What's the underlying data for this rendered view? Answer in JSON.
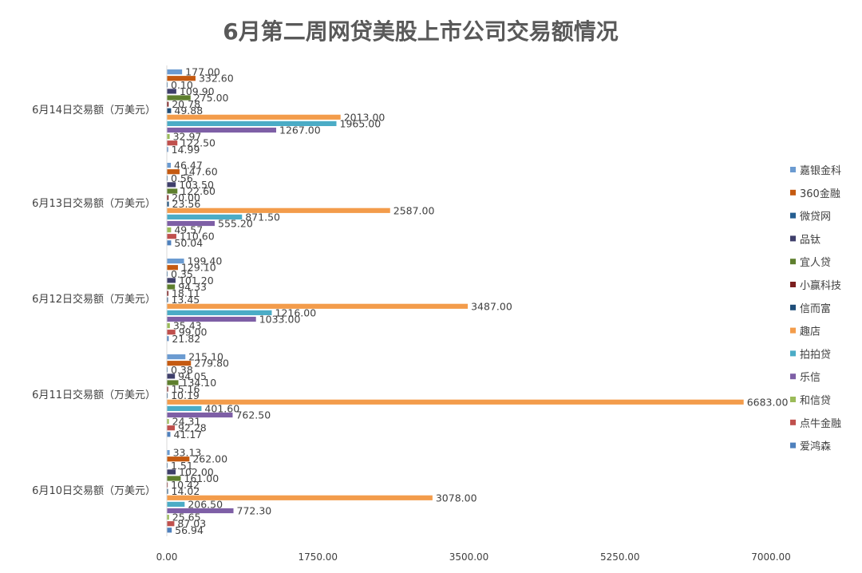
{
  "chart_data": {
    "type": "bar",
    "orientation": "horizontal",
    "title": "6月第二周网贷美股上市公司交易额情况",
    "xlabel": "",
    "ylabel": "",
    "xlim": [
      0,
      7000
    ],
    "x_ticks": [
      "0.00",
      "1750.00",
      "3500.00",
      "5250.00",
      "7000.00"
    ],
    "grid": false,
    "legend_position": "right",
    "categories": [
      "6月14日交易额（万美元）",
      "6月13日交易额（万美元）",
      "6月12日交易额（万美元）",
      "6月11日交易额（万美元）",
      "6月10日交易额（万美元）"
    ],
    "series": [
      {
        "name": "嘉银金科",
        "color": "#6B9BD1",
        "values": [
          177.0,
          46.47,
          199.4,
          215.1,
          33.13
        ]
      },
      {
        "name": "360金融",
        "color": "#C55A11",
        "values": [
          332.6,
          147.6,
          129.1,
          279.8,
          262.0
        ]
      },
      {
        "name": "微贷网",
        "color": "#255E91",
        "values": [
          0.1,
          0.56,
          0.35,
          0.38,
          1.51
        ]
      },
      {
        "name": "品钛",
        "color": "#3F3F6B",
        "values": [
          109.9,
          103.5,
          101.2,
          94.05,
          102.0
        ]
      },
      {
        "name": "宜人贷",
        "color": "#5E7F2E",
        "values": [
          275.0,
          122.6,
          94.33,
          134.1,
          161.0
        ]
      },
      {
        "name": "小赢科技",
        "color": "#7B1E1E",
        "values": [
          20.78,
          20.0,
          18.11,
          15.16,
          10.42
        ]
      },
      {
        "name": "信而富",
        "color": "#1F4E79",
        "values": [
          49.88,
          23.56,
          13.45,
          10.19,
          14.02
        ]
      },
      {
        "name": "趣店",
        "color": "#F39C4B",
        "values": [
          2013.0,
          2587.0,
          3487.0,
          6683.0,
          3078.0
        ]
      },
      {
        "name": "拍拍贷",
        "color": "#4BACC6",
        "values": [
          1965.0,
          871.5,
          1216.0,
          401.6,
          206.5
        ]
      },
      {
        "name": "乐信",
        "color": "#7E5FA6",
        "values": [
          1267.0,
          555.2,
          1033.0,
          762.5,
          772.3
        ]
      },
      {
        "name": "和信贷",
        "color": "#9BBB59",
        "values": [
          32.97,
          49.57,
          35.43,
          24.31,
          25.65
        ]
      },
      {
        "name": "点牛金融",
        "color": "#C0504D",
        "values": [
          122.5,
          110.6,
          99.0,
          92.28,
          87.03
        ]
      },
      {
        "name": "爱鸿森",
        "color": "#4F81BD",
        "values": [
          14.99,
          50.04,
          21.82,
          41.17,
          56.94
        ]
      }
    ]
  }
}
